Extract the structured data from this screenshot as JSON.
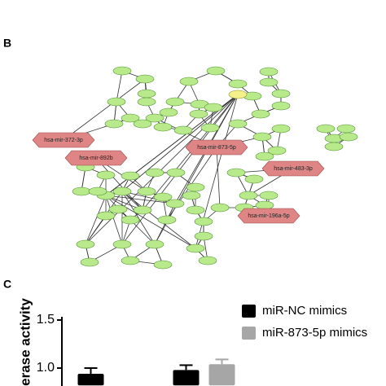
{
  "panel_b": {
    "label": "B",
    "mirna_nodes": [
      "hsa-mir-372-3p",
      "hsa-mir-892b",
      "hsa-mir-873-5p",
      "hsa-mir-483-3p",
      "hsa-mir-196a-5p"
    ]
  },
  "chart_data": {
    "type": "bar",
    "panel_label": "C",
    "ylabel": "erase activity",
    "categories": [
      null,
      null
    ],
    "series": [
      {
        "name": "miR-NC mimics",
        "color": "#000000",
        "values": [
          0.94,
          0.98
        ],
        "errors": [
          0.06,
          0.05
        ]
      },
      {
        "name": "miR-873-5p mimics",
        "color": "#a6a6a6",
        "values": [
          null,
          1.04
        ],
        "errors": [
          null,
          0.05
        ]
      }
    ],
    "ylim": [
      0.82,
      1.5
    ],
    "yticks": [
      {
        "value": 1.5,
        "label": "1.5"
      },
      {
        "value": 1.0,
        "label": "1.0"
      }
    ]
  }
}
